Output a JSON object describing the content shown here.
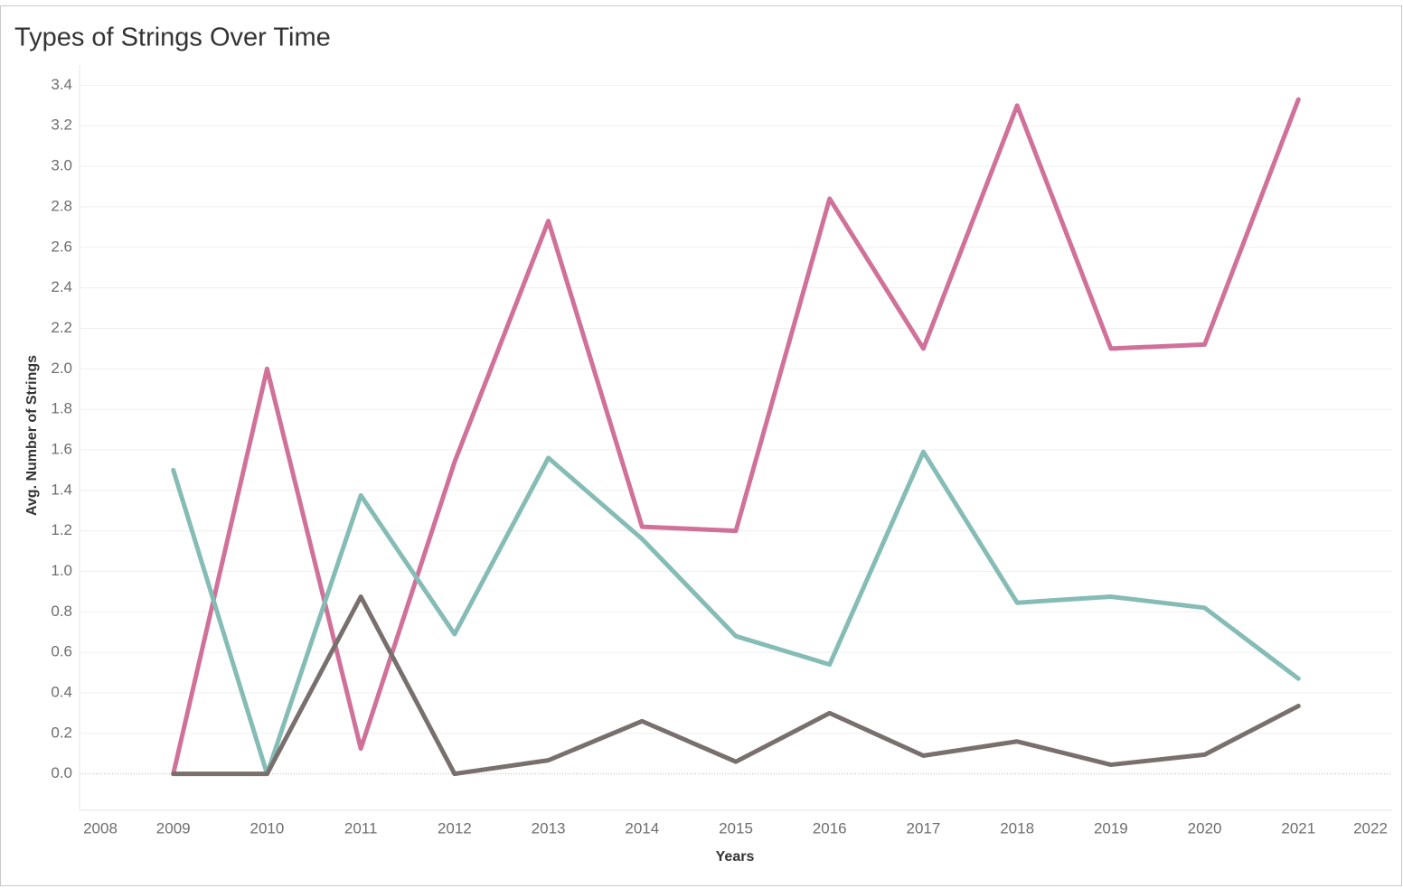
{
  "chart_data": {
    "type": "line",
    "title": "Types of Strings Over Time",
    "x_label": "Years",
    "y_label": "Avg. Number of Strings",
    "x": [
      2009,
      2010,
      2011,
      2012,
      2013,
      2014,
      2015,
      2016,
      2017,
      2018,
      2019,
      2020,
      2021
    ],
    "series": [
      {
        "color": "#d0719a",
        "values": [
          0,
          2.0,
          0.125,
          1.54,
          2.73,
          1.22,
          1.2,
          2.84,
          2.1,
          3.3,
          2.1,
          2.12,
          3.33
        ]
      },
      {
        "color": "#86bcb6",
        "values": [
          1.5,
          0,
          1.375,
          0.69,
          1.56,
          1.16,
          0.68,
          0.54,
          1.59,
          0.845,
          0.875,
          0.82,
          0.47
        ]
      },
      {
        "color": "#79706e",
        "values": [
          0,
          0,
          0.875,
          0,
          0.067,
          0.26,
          0.06,
          0.3,
          0.09,
          0.16,
          0.045,
          0.095,
          0.335
        ]
      }
    ],
    "xlim": [
      2008,
      2022
    ],
    "xticks": [
      2008,
      2009,
      2010,
      2011,
      2012,
      2013,
      2014,
      2015,
      2016,
      2017,
      2018,
      2019,
      2020,
      2021,
      2022
    ],
    "ylim": [
      -0.18,
      3.5
    ],
    "yticks": [
      {
        "value": 0,
        "label": "0.0"
      },
      0.2,
      0.4,
      0.6,
      0.8,
      {
        "value": 1,
        "label": "1.0"
      },
      1.2,
      1.4,
      1.6,
      1.8,
      {
        "value": 2,
        "label": "2.0"
      },
      2.2,
      2.4,
      2.6,
      2.8,
      {
        "value": 3,
        "label": "3.0"
      },
      3.2,
      3.4
    ],
    "grid": true
  }
}
